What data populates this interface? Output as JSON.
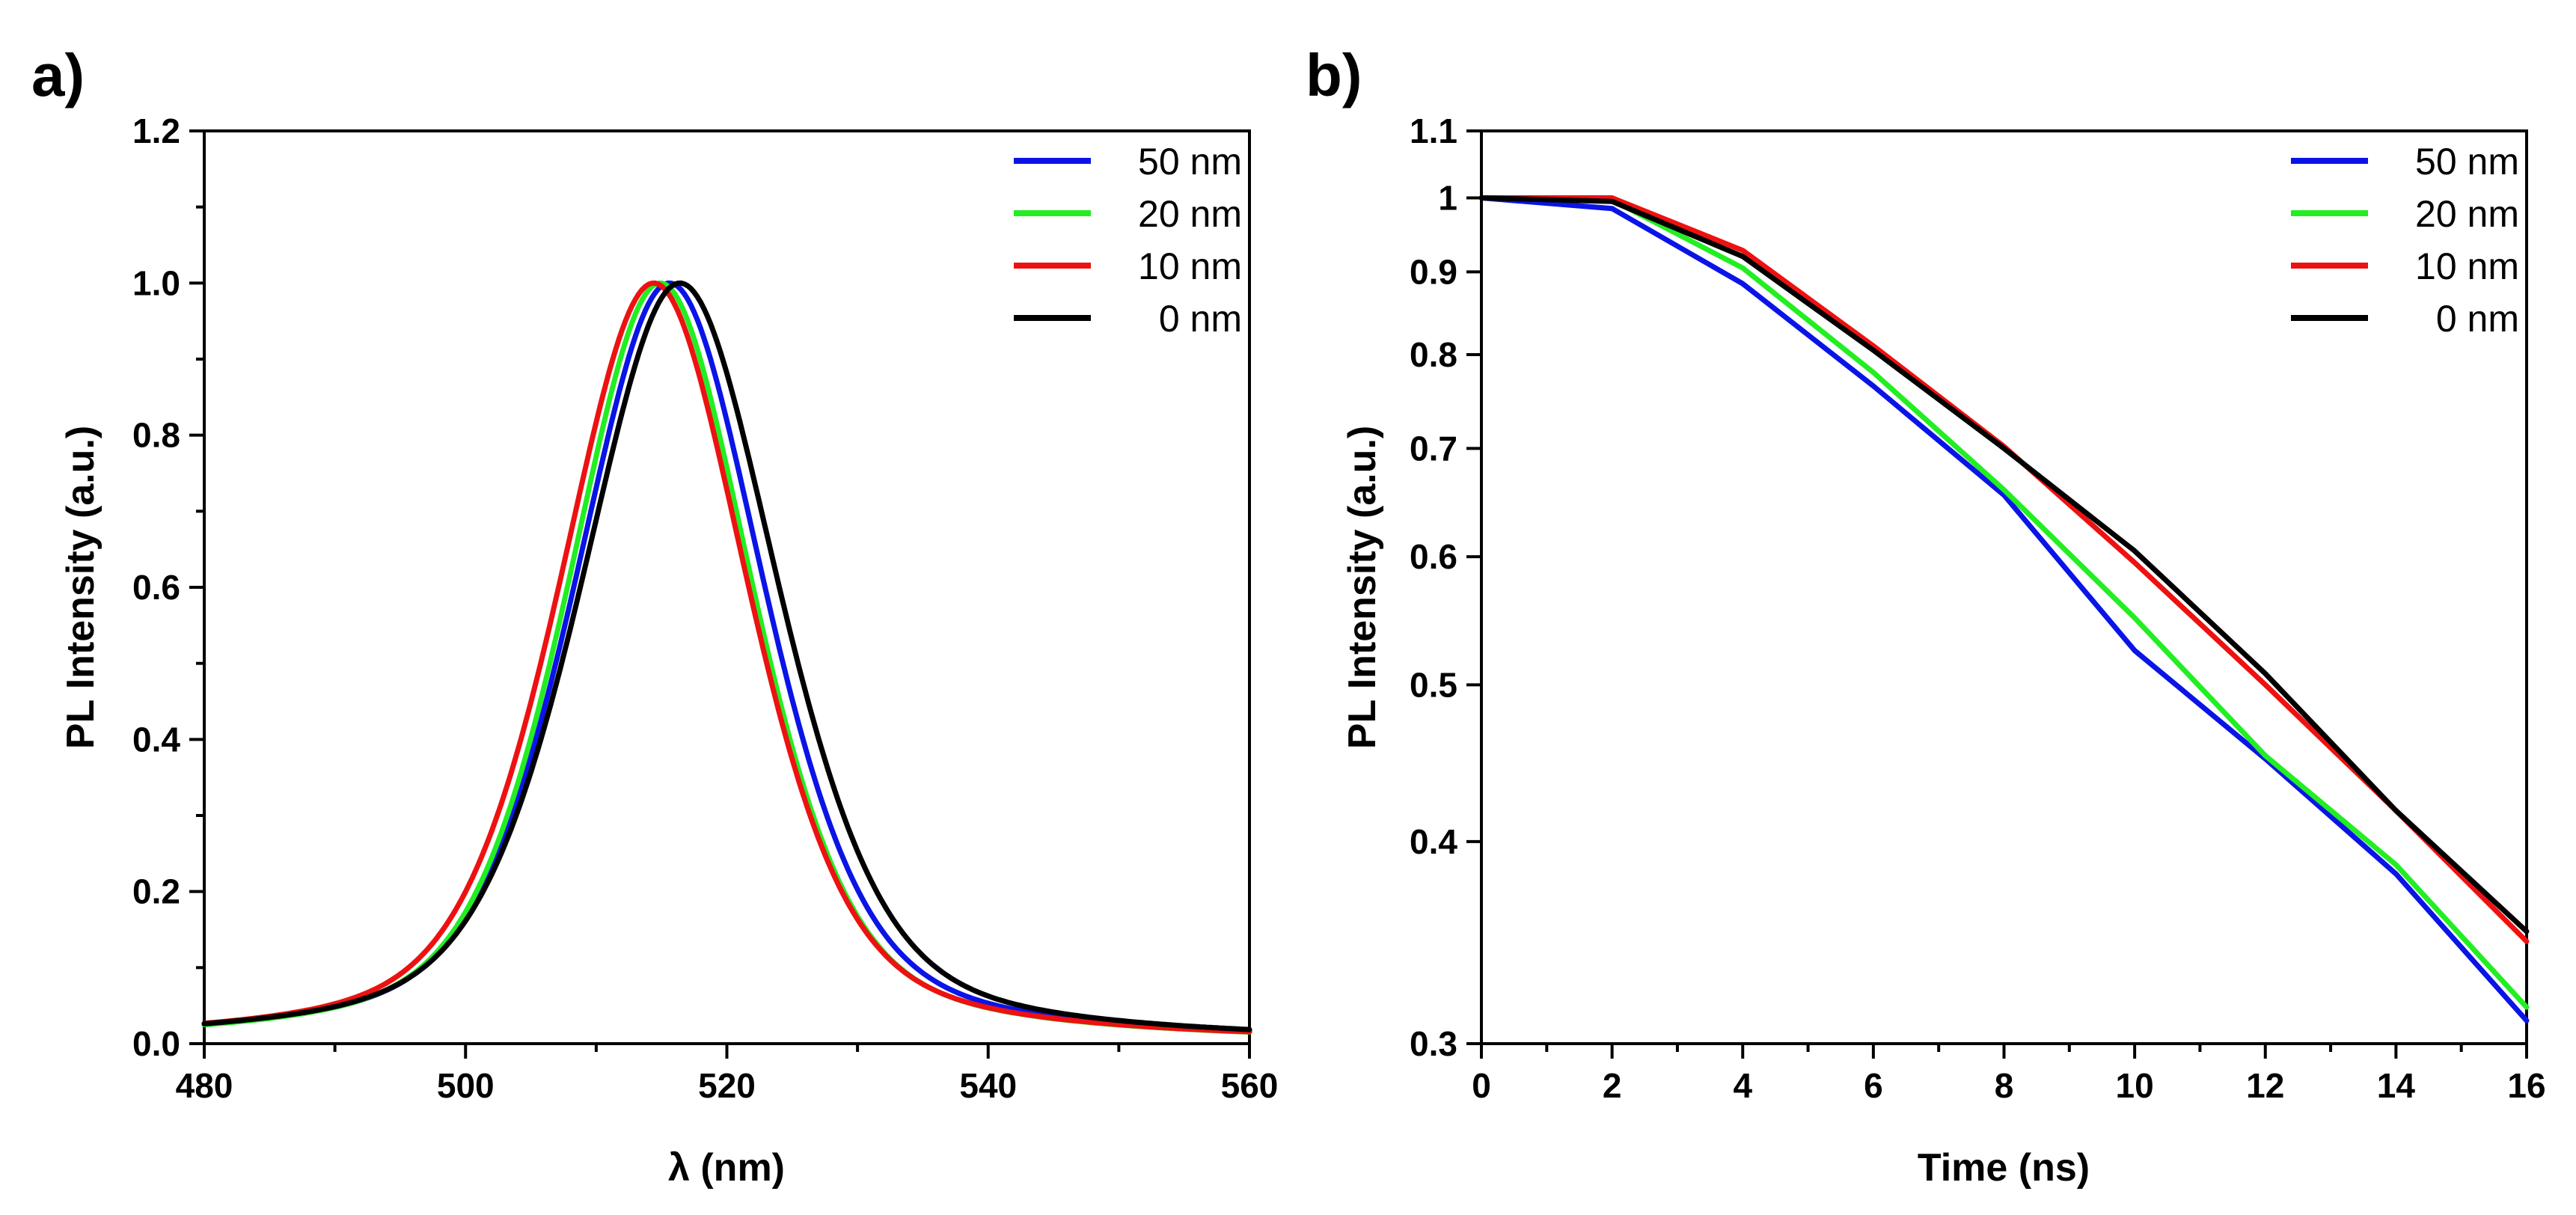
{
  "chart_data": [
    {
      "panel_label": "a)",
      "type": "line",
      "xlabel": "λ (nm)",
      "ylabel": "PL Intensity (a.u.)",
      "xlim": [
        480,
        560
      ],
      "ylim": [
        0,
        1.2
      ],
      "yscale": "linear",
      "xticks": [
        480,
        500,
        520,
        540,
        560
      ],
      "xtick_labels": [
        "480",
        "500",
        "520",
        "540",
        "560"
      ],
      "yticks": [
        0,
        0.2,
        0.4,
        0.6,
        0.8,
        1.0,
        1.2
      ],
      "ytick_labels": [
        "0.0",
        "0.2",
        "0.4",
        "0.6",
        "0.8",
        "1.0",
        "1.2"
      ],
      "legend_position": "top-right",
      "series": [
        {
          "name": "50 nm",
          "color": "#0a14e6",
          "peak": 515.6,
          "fwhm": 17.4
        },
        {
          "name": "20 nm",
          "color": "#22ee22",
          "peak": 514.9,
          "fwhm": 16.9
        },
        {
          "name": "10 nm",
          "color": "#ee1111",
          "peak": 514.4,
          "fwhm": 17.3
        },
        {
          "name": "0 nm",
          "color": "#000000",
          "peak": 516.4,
          "fwhm": 18.1
        }
      ]
    },
    {
      "panel_label": "b)",
      "type": "line",
      "xlabel": "Time (ns)",
      "ylabel": "PL Intensity (a.u.)",
      "xlim": [
        0,
        16
      ],
      "ylim": [
        0.3,
        1.1
      ],
      "yscale": "log",
      "xticks": [
        0,
        2,
        4,
        6,
        8,
        10,
        12,
        14,
        16
      ],
      "xtick_labels": [
        "0",
        "2",
        "4",
        "6",
        "8",
        "10",
        "12",
        "14",
        "16"
      ],
      "yticks": [
        0.3,
        0.4,
        0.5,
        0.6,
        0.7,
        0.8,
        0.9,
        1,
        1.1
      ],
      "ytick_labels": [
        "0.3",
        "0.4",
        "0.5",
        "0.6",
        "0.7",
        "0.8",
        "0.9",
        "1",
        "1.1"
      ],
      "legend_position": "top-right",
      "x": [
        0,
        2,
        4,
        6,
        8,
        10,
        12,
        14,
        16
      ],
      "series": [
        {
          "name": "50 nm",
          "color": "#0a14e6",
          "values": [
            1.0,
            0.985,
            0.885,
            0.765,
            0.655,
            0.525,
            0.45,
            0.382,
            0.31
          ]
        },
        {
          "name": "20 nm",
          "color": "#22ee22",
          "values": [
            1.0,
            0.997,
            0.905,
            0.78,
            0.66,
            0.55,
            0.452,
            0.387,
            0.316
          ]
        },
        {
          "name": "10 nm",
          "color": "#ee1111",
          "values": [
            1.0,
            1.0,
            0.928,
            0.81,
            0.702,
            0.595,
            0.5,
            0.418,
            0.347
          ]
        },
        {
          "name": "0 nm",
          "color": "#000000",
          "values": [
            1.0,
            0.995,
            0.92,
            0.805,
            0.7,
            0.605,
            0.508,
            0.418,
            0.352
          ]
        }
      ]
    }
  ]
}
